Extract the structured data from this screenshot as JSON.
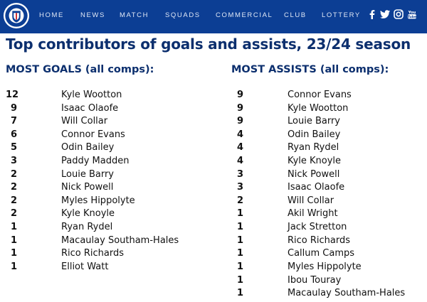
{
  "nav": {
    "links": [
      "HOME",
      "NEWS",
      "MATCH",
      "SQUADS",
      "COMMERCIAL",
      "CLUB",
      "LOTTERY"
    ],
    "social": [
      "facebook-icon",
      "twitter-icon",
      "instagram-icon",
      "youtube-icon"
    ],
    "brand_color": "#0c3e94"
  },
  "page": {
    "title": "Top contributors of goals and assists, 23/24 season"
  },
  "goals": {
    "heading": "MOST GOALS (all comps):",
    "rows": [
      {
        "count": "12",
        "name": "Kyle Wootton"
      },
      {
        "count": "9",
        "name": "Isaac Olaofe"
      },
      {
        "count": "7",
        "name": "Will Collar"
      },
      {
        "count": "6",
        "name": "Connor Evans"
      },
      {
        "count": "5",
        "name": "Odin Bailey"
      },
      {
        "count": "3",
        "name": "Paddy Madden"
      },
      {
        "count": "2",
        "name": "Louie Barry"
      },
      {
        "count": "2",
        "name": "Nick Powell"
      },
      {
        "count": "2",
        "name": "Myles Hippolyte"
      },
      {
        "count": "2",
        "name": "Kyle Knoyle"
      },
      {
        "count": "1",
        "name": "Ryan Rydel"
      },
      {
        "count": "1",
        "name": "Macaulay Southam-Hales"
      },
      {
        "count": "1",
        "name": "Rico Richards"
      },
      {
        "count": "1",
        "name": "Elliot Watt"
      }
    ]
  },
  "assists": {
    "heading": "MOST ASSISTS (all comps):",
    "rows": [
      {
        "count": "9",
        "name": "Connor Evans"
      },
      {
        "count": "9",
        "name": "Kyle Wootton"
      },
      {
        "count": "9",
        "name": "Louie Barry"
      },
      {
        "count": "4",
        "name": "Odin Bailey"
      },
      {
        "count": "4",
        "name": "Ryan Rydel"
      },
      {
        "count": "4",
        "name": "Kyle Knoyle"
      },
      {
        "count": "3",
        "name": "Nick Powell"
      },
      {
        "count": "3",
        "name": "Isaac Olaofe"
      },
      {
        "count": "2",
        "name": "Will Collar"
      },
      {
        "count": "1",
        "name": "Akil Wright"
      },
      {
        "count": "1",
        "name": "Jack Stretton"
      },
      {
        "count": "1",
        "name": "Rico Richards"
      },
      {
        "count": "1",
        "name": "Callum Camps"
      },
      {
        "count": "1",
        "name": "Myles Hippolyte"
      },
      {
        "count": "1",
        "name": "Ibou Touray"
      },
      {
        "count": "1",
        "name": "Macaulay Southam-Hales"
      }
    ]
  }
}
